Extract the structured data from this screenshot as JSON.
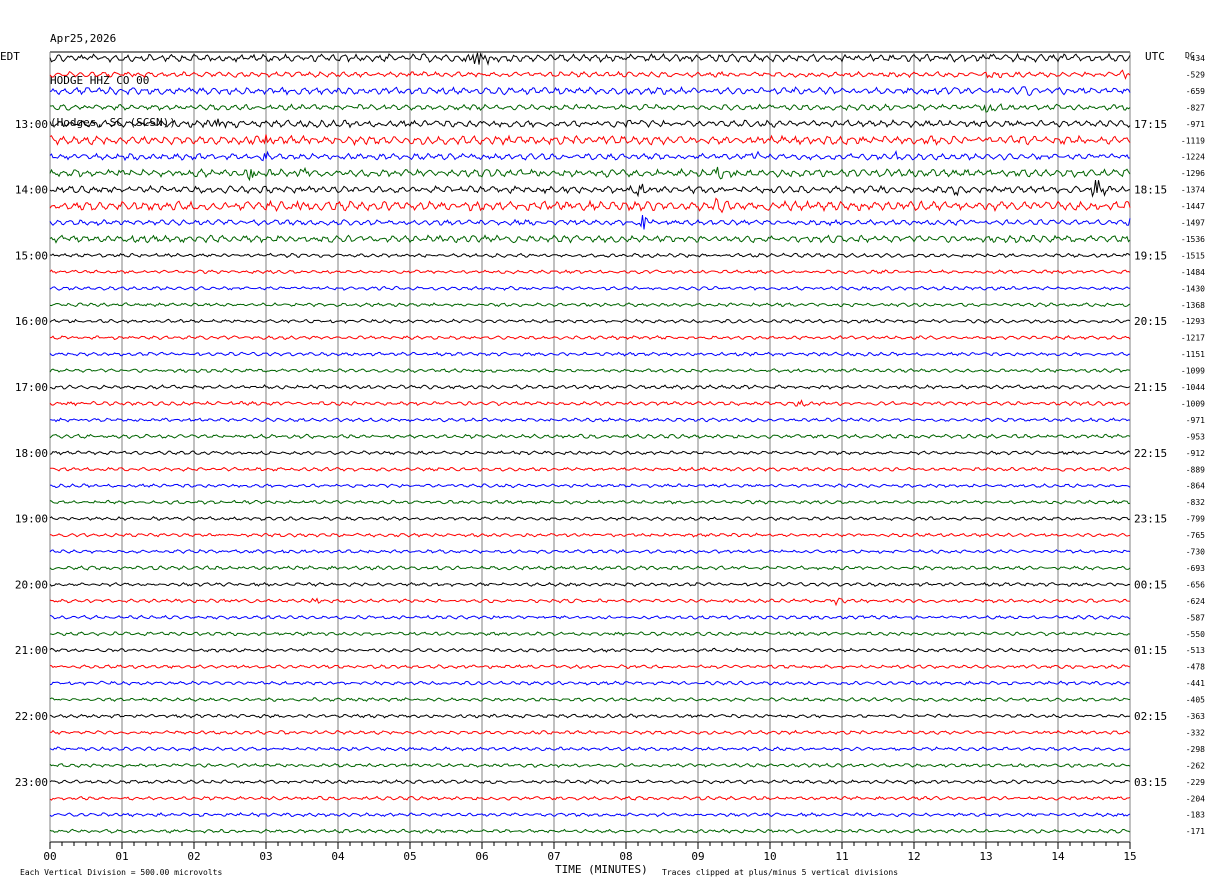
{
  "header": {
    "date": "Apr25,2026",
    "station": "HODGE HHZ CO 00",
    "location": "(Hodges, SC (SCSN))"
  },
  "chart_data": {
    "type": "line",
    "left_axis_label": "EDT",
    "right_axis_label": "UTC",
    "dc_label": "DC",
    "x_axis_title": "TIME (MINUTES)",
    "x_range": [
      0,
      15
    ],
    "x_tick_labels": [
      "00",
      "01",
      "02",
      "03",
      "04",
      "05",
      "06",
      "07",
      "08",
      "09",
      "10",
      "11",
      "12",
      "13",
      "14",
      "15"
    ],
    "rows_per_hour": 4,
    "left_hour_labels": [
      "13:00",
      "14:00",
      "15:00",
      "16:00",
      "17:00",
      "18:00",
      "19:00",
      "20:00",
      "21:00",
      "22:00",
      "23:00"
    ],
    "right_hour_labels": [
      "17:15",
      "18:15",
      "19:15",
      "20:15",
      "21:15",
      "22:15",
      "23:15",
      "00:15",
      "01:15",
      "02:15",
      "03:15"
    ],
    "dc_offsets": [
      "-434",
      "-529",
      "-659",
      "-827",
      "-971",
      "-1119",
      "-1224",
      "-1296",
      "-1374",
      "-1447",
      "-1497",
      "-1536",
      "-1515",
      "-1484",
      "-1430",
      "-1368",
      "-1293",
      "-1217",
      "-1151",
      "-1099",
      "-1044",
      "-1009",
      "-971",
      "-953",
      "-912",
      "-889",
      "-864",
      "-832",
      "-799",
      "-765",
      "-730",
      "-693",
      "-656",
      "-624",
      "-587",
      "-550",
      "-513",
      "-478",
      "-441",
      "-405",
      "-363",
      "-332",
      "-298",
      "-262",
      "-229",
      "-204",
      "-183",
      "-171"
    ],
    "trace_colors": [
      "#000000",
      "#ff0000",
      "#0000ff",
      "#006400"
    ],
    "grid_color": "#808080",
    "activity": [
      2.2,
      1.5,
      2.0,
      1.6,
      2.0,
      2.4,
      1.8,
      2.2,
      2.0,
      2.6,
      1.6,
      2.0,
      1.1,
      1.0,
      1.0,
      1.0,
      1.0,
      1.0,
      1.0,
      1.0,
      1.1,
      1.1,
      1.0,
      1.1,
      1.0,
      1.0,
      1.0,
      1.0,
      1.0,
      1.0,
      1.0,
      1.1,
      1.0,
      1.0,
      1.0,
      1.0,
      1.0,
      1.0,
      1.0,
      1.0,
      1.0,
      1.0,
      1.0,
      1.0,
      1.0,
      1.0,
      1.0,
      1.0
    ],
    "events": [
      {
        "row": 0,
        "minute": 5.88,
        "amp": 2.2
      },
      {
        "row": 0,
        "minute": 13.05,
        "amp": 0.6
      },
      {
        "row": 1,
        "minute": 13.0,
        "amp": 0.5
      },
      {
        "row": 1,
        "minute": 14.88,
        "amp": 0.5
      },
      {
        "row": 2,
        "minute": 13.5,
        "amp": 0.6
      },
      {
        "row": 3,
        "minute": 13.0,
        "amp": 0.9
      },
      {
        "row": 3,
        "minute": 14.88,
        "amp": 0.7
      },
      {
        "row": 4,
        "minute": 2.28,
        "amp": 0.7
      },
      {
        "row": 4,
        "minute": 8.0,
        "amp": 0.5
      },
      {
        "row": 5,
        "minute": 2.95,
        "amp": 1.0
      },
      {
        "row": 5,
        "minute": 7.65,
        "amp": 0.5
      },
      {
        "row": 6,
        "minute": 2.95,
        "amp": 0.8
      },
      {
        "row": 6,
        "minute": 9.75,
        "amp": 0.6
      },
      {
        "row": 6,
        "minute": 11.75,
        "amp": 0.6
      },
      {
        "row": 7,
        "minute": 2.75,
        "amp": 0.8
      },
      {
        "row": 7,
        "minute": 3.45,
        "amp": 1.0
      },
      {
        "row": 7,
        "minute": 9.25,
        "amp": 0.7
      },
      {
        "row": 8,
        "minute": 8.15,
        "amp": 0.9
      },
      {
        "row": 8,
        "minute": 12.55,
        "amp": 0.8
      },
      {
        "row": 8,
        "minute": 14.5,
        "amp": 1.2
      },
      {
        "row": 9,
        "minute": 3.4,
        "amp": 0.7
      },
      {
        "row": 9,
        "minute": 9.25,
        "amp": 0.8
      },
      {
        "row": 10,
        "minute": 8.2,
        "amp": 1.2
      },
      {
        "row": 10,
        "minute": 14.98,
        "amp": 0.6
      },
      {
        "row": 21,
        "minute": 10.4,
        "amp": 0.4
      },
      {
        "row": 33,
        "minute": 3.65,
        "amp": 0.4
      },
      {
        "row": 33,
        "minute": 10.9,
        "amp": 0.5
      }
    ]
  },
  "footer": {
    "scale_note": "Each Vertical Division =  500.00 microvolts",
    "clip_note": "Traces clipped at plus/minus 5 vertical divisions"
  }
}
